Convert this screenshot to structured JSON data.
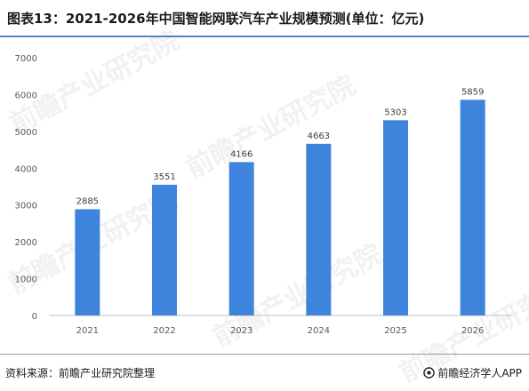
{
  "title": "图表13：2021-2026年中国智能网联汽车产业规模预测(单位：亿元)",
  "source": "资料来源：前瞻产业研究院整理",
  "brand": "前瞻经济学人APP",
  "watermark": "前瞻产业研究院",
  "colors": {
    "bar": "#3f84dc",
    "axis": "#bfbfbf",
    "tick_text": "#595959",
    "label_text": "#404040",
    "rule": "#4a86c8"
  },
  "chart_data": {
    "type": "bar",
    "title": "图表13：2021-2026年中国智能网联汽车产业规模预测(单位：亿元)",
    "xlabel": "",
    "ylabel": "",
    "categories": [
      "2021",
      "2022",
      "2023",
      "2024",
      "2025",
      "2026"
    ],
    "values": [
      2885,
      3551,
      4166,
      4663,
      5303,
      5859
    ],
    "ylim": [
      0,
      7000
    ],
    "yticks": [
      0,
      1000,
      2000,
      3000,
      4000,
      5000,
      6000,
      7000
    ],
    "grid": false,
    "legend": "none",
    "data_labels": true
  }
}
